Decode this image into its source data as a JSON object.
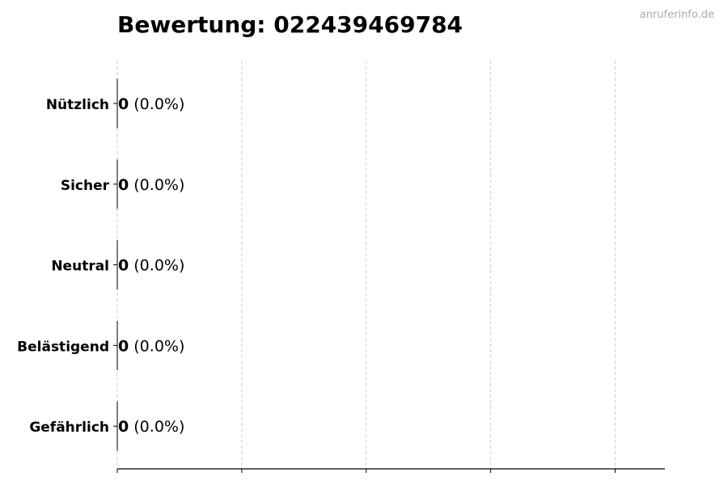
{
  "chart_data": {
    "type": "bar",
    "orientation": "horizontal",
    "title": "Bewertung: 022439469784",
    "watermark": "anruferinfo.de",
    "categories": [
      "Nützlich",
      "Sicher",
      "Neutral",
      "Belästigend",
      "Gefährlich"
    ],
    "values": [
      0,
      0,
      0,
      0,
      0
    ],
    "percent_labels": [
      "(0.0%)",
      "(0.0%)",
      "(0.0%)",
      "(0.0%)",
      "(0.0%)"
    ],
    "xlim": [
      0,
      4.4
    ],
    "xticks": [
      0,
      1,
      2,
      3,
      4
    ],
    "xtick_labels_shown": false,
    "grid": "x-dashed",
    "colors": {
      "bar_edge": "#000000",
      "grid": "#cccccc",
      "watermark": "#aaaaaa"
    }
  }
}
